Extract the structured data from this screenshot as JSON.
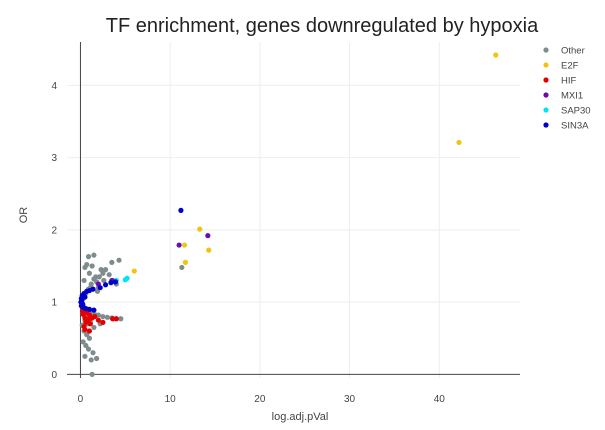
{
  "chart_data": {
    "type": "scatter",
    "title": "TF enrichment, genes downregulated by hypoxia",
    "xlabel": "log.adj.pVal",
    "ylabel": "OR",
    "xlim": [
      -1.5,
      49
    ],
    "ylim": [
      -0.05,
      4.6
    ],
    "x_ticks": [
      0,
      10,
      20,
      30,
      40
    ],
    "y_ticks": [
      0,
      1,
      2,
      3,
      4
    ],
    "x_tick_labels": [
      "0",
      "10",
      "20",
      "30",
      "40"
    ],
    "y_tick_labels": [
      "0",
      "1",
      "2",
      "3",
      "4"
    ],
    "grid": true,
    "legend_position": "top-right",
    "series": [
      {
        "name": "Other",
        "color": "#7f8c8d",
        "points": [
          [
            0.3,
            1.05
          ],
          [
            0.6,
            1.12
          ],
          [
            0.9,
            1.18
          ],
          [
            1.2,
            1.25
          ],
          [
            1.5,
            1.32
          ],
          [
            1.8,
            1.28
          ],
          [
            2.1,
            1.35
          ],
          [
            2.5,
            1.4
          ],
          [
            2.8,
            1.45
          ],
          [
            3.2,
            1.38
          ],
          [
            3.6,
            1.3
          ],
          [
            4.0,
            1.25
          ],
          [
            4.3,
            1.58
          ],
          [
            3.5,
            1.55
          ],
          [
            0.9,
            1.63
          ],
          [
            1.5,
            1.65
          ],
          [
            0.5,
            1.48
          ],
          [
            1.0,
            1.4
          ],
          [
            1.3,
            1.5
          ],
          [
            1.7,
            1.35
          ],
          [
            0.4,
            1.3
          ],
          [
            2.0,
            1.2
          ],
          [
            2.3,
            1.45
          ],
          [
            0.7,
            1.52
          ],
          [
            1.1,
            1.2
          ],
          [
            1.9,
            1.15
          ],
          [
            2.6,
            1.3
          ],
          [
            0.3,
            0.95
          ],
          [
            0.6,
            0.9
          ],
          [
            0.9,
            0.88
          ],
          [
            1.2,
            0.85
          ],
          [
            1.6,
            0.83
          ],
          [
            2.0,
            0.82
          ],
          [
            2.5,
            0.8
          ],
          [
            3.0,
            0.79
          ],
          [
            3.5,
            0.78
          ],
          [
            4.0,
            0.77
          ],
          [
            4.5,
            0.77
          ],
          [
            0.5,
            0.75
          ],
          [
            0.8,
            0.7
          ],
          [
            1.1,
            0.72
          ],
          [
            0.4,
            0.6
          ],
          [
            0.7,
            0.55
          ],
          [
            1.0,
            0.5
          ],
          [
            0.3,
            0.45
          ],
          [
            0.6,
            0.4
          ],
          [
            0.9,
            0.35
          ],
          [
            0.5,
            0.25
          ],
          [
            1.2,
            0.2
          ],
          [
            1.8,
            0.22
          ],
          [
            1.4,
            0.3
          ],
          [
            0.2,
            0.68
          ],
          [
            1.5,
            0.65
          ],
          [
            2.2,
            0.7
          ],
          [
            0.3,
            0.85
          ],
          [
            1.3,
            0.0
          ],
          [
            11.3,
            1.48
          ]
        ]
      },
      {
        "name": "E2F",
        "color": "#f1c40f",
        "points": [
          [
            46.3,
            4.42
          ],
          [
            42.2,
            3.21
          ],
          [
            13.3,
            2.01
          ],
          [
            14.3,
            1.72
          ],
          [
            11.6,
            1.79
          ],
          [
            11.7,
            1.55
          ],
          [
            6.0,
            1.43
          ]
        ]
      },
      {
        "name": "HIF",
        "color": "#e50000",
        "points": [
          [
            0.2,
            0.98
          ],
          [
            0.35,
            0.92
          ],
          [
            0.5,
            0.88
          ],
          [
            0.3,
            0.83
          ],
          [
            0.7,
            0.85
          ],
          [
            1.0,
            0.82
          ],
          [
            0.5,
            0.78
          ],
          [
            0.9,
            0.76
          ],
          [
            1.3,
            0.78
          ],
          [
            0.6,
            0.72
          ],
          [
            1.1,
            0.7
          ],
          [
            0.4,
            0.66
          ],
          [
            0.5,
            0.62
          ],
          [
            1.0,
            0.6
          ],
          [
            1.6,
            0.8
          ],
          [
            2.0,
            0.75
          ],
          [
            3.6,
            0.77
          ],
          [
            4.0,
            0.77
          ],
          [
            0.25,
            0.88
          ],
          [
            0.8,
            0.9
          ],
          [
            2.5,
            0.72
          ]
        ]
      },
      {
        "name": "MXI1",
        "color": "#6a0dad",
        "points": [
          [
            11.0,
            1.79
          ],
          [
            14.2,
            1.92
          ],
          [
            3.5,
            1.3
          ],
          [
            2.0,
            1.25
          ]
        ]
      },
      {
        "name": "SAP30",
        "color": "#00e5ee",
        "points": [
          [
            5.0,
            1.31
          ],
          [
            5.2,
            1.33
          ],
          [
            4.0,
            1.3
          ]
        ]
      },
      {
        "name": "SIN3A",
        "color": "#0000cc",
        "points": [
          [
            0.05,
            1.0
          ],
          [
            0.1,
            1.05
          ],
          [
            0.2,
            1.09
          ],
          [
            0.4,
            1.12
          ],
          [
            0.7,
            1.15
          ],
          [
            1.0,
            1.16
          ],
          [
            1.4,
            1.18
          ],
          [
            0.1,
            0.95
          ],
          [
            0.3,
            0.93
          ],
          [
            0.6,
            0.91
          ],
          [
            1.0,
            0.9
          ],
          [
            1.5,
            0.89
          ],
          [
            2.2,
            1.2
          ],
          [
            2.8,
            1.24
          ],
          [
            3.4,
            1.27
          ],
          [
            3.9,
            1.28
          ],
          [
            0.15,
            1.02
          ],
          [
            11.2,
            2.27
          ],
          [
            0.5,
            1.07
          ],
          [
            0.25,
            0.97
          ]
        ]
      }
    ]
  }
}
